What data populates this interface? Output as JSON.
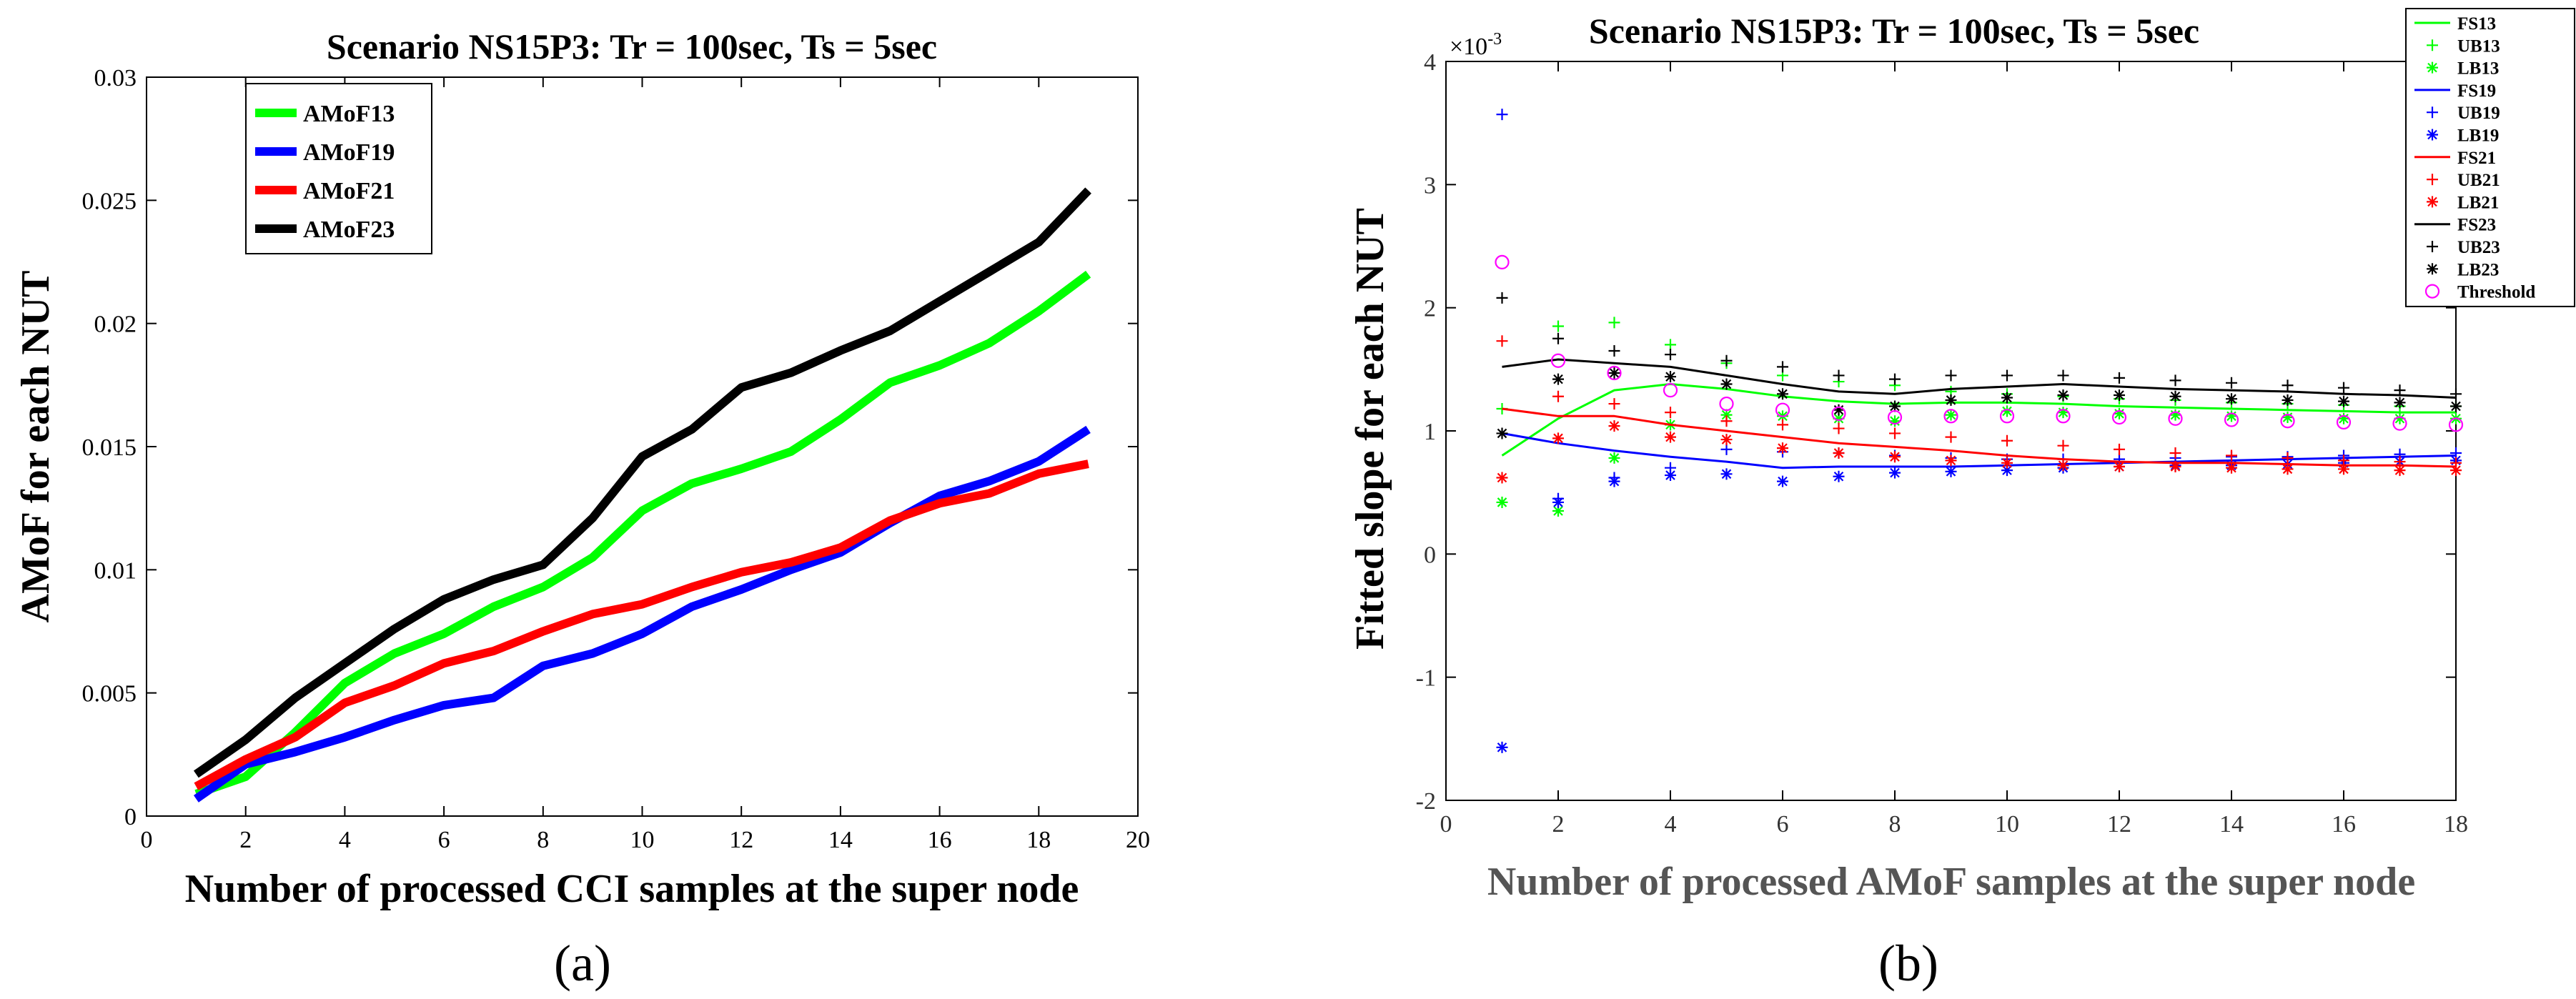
{
  "chart_data": [
    {
      "type": "line",
      "title": "Scenario NS15P3: Tr = 100sec, Ts = 5sec",
      "xlabel": "Number of processed CCI samples at the super node",
      "ylabel": "AMoF for each NUT",
      "xlim": [
        0,
        20
      ],
      "ylim": [
        0,
        0.03
      ],
      "xticks": [
        0,
        2,
        4,
        6,
        8,
        10,
        12,
        14,
        16,
        18,
        20
      ],
      "yticks": [
        0,
        0.005,
        0.01,
        0.015,
        0.02,
        0.025,
        0.03
      ],
      "xtick_labels": [
        "0",
        "2",
        "4",
        "6",
        "8",
        "10",
        "12",
        "14",
        "16",
        "18",
        "20"
      ],
      "ytick_labels": [
        "0",
        "0.005",
        "0.01",
        "0.015",
        "0.02",
        "0.025",
        "0.03"
      ],
      "caption": "(a)",
      "legend_position": "top-left",
      "x": [
        1,
        2,
        3,
        4,
        5,
        6,
        7,
        8,
        9,
        10,
        11,
        12,
        13,
        14,
        15,
        16,
        17,
        18,
        19
      ],
      "series": [
        {
          "name": "AMoF13",
          "color": "#00ff00",
          "values": [
            0.0009,
            0.0016,
            0.0034,
            0.0054,
            0.0066,
            0.0074,
            0.0085,
            0.0093,
            0.0105,
            0.0124,
            0.0135,
            0.0141,
            0.0148,
            0.0161,
            0.0176,
            0.0183,
            0.0192,
            0.0205,
            0.022
          ]
        },
        {
          "name": "AMoF19",
          "color": "#0000ff",
          "values": [
            0.0007,
            0.0021,
            0.0026,
            0.0032,
            0.0039,
            0.0045,
            0.0048,
            0.0061,
            0.0066,
            0.0074,
            0.0085,
            0.0092,
            0.01,
            0.0107,
            0.0119,
            0.013,
            0.0136,
            0.0144,
            0.0157
          ]
        },
        {
          "name": "AMoF21",
          "color": "#ff0000",
          "values": [
            0.0012,
            0.0023,
            0.0032,
            0.0046,
            0.0053,
            0.0062,
            0.0067,
            0.0075,
            0.0082,
            0.0086,
            0.0093,
            0.0099,
            0.0103,
            0.0109,
            0.012,
            0.0127,
            0.0131,
            0.0139,
            0.0143
          ]
        },
        {
          "name": "AMoF23",
          "color": "#000000",
          "values": [
            0.0017,
            0.0031,
            0.0048,
            0.0062,
            0.0076,
            0.0088,
            0.0096,
            0.0102,
            0.0121,
            0.0146,
            0.0157,
            0.0174,
            0.018,
            0.0189,
            0.0197,
            0.0209,
            0.0221,
            0.0233,
            0.0254
          ]
        }
      ]
    },
    {
      "type": "line",
      "title": "Scenario NS15P3: Tr = 100sec, Ts = 5sec",
      "xlabel": "Number of processed AMoF samples at the super node",
      "ylabel": "Fitted slope for each NUT",
      "y_multiplier": "×10-3",
      "y_multiplier_base": "×10",
      "y_multiplier_exp": "-3",
      "xlim": [
        0,
        18
      ],
      "ylim": [
        -2,
        4
      ],
      "xticks": [
        0,
        2,
        4,
        6,
        8,
        10,
        12,
        14,
        16,
        18
      ],
      "yticks": [
        -2,
        -1,
        0,
        1,
        2,
        3,
        4
      ],
      "xtick_labels": [
        "0",
        "2",
        "4",
        "6",
        "8",
        "10",
        "12",
        "14",
        "16",
        "18"
      ],
      "ytick_labels": [
        "-2",
        "-1",
        "0",
        "1",
        "2",
        "3",
        "4"
      ],
      "caption": "(b)",
      "legend_position": "top-right",
      "x": [
        1,
        2,
        3,
        4,
        5,
        6,
        7,
        8,
        9,
        10,
        11,
        12,
        13,
        14,
        15,
        16,
        17,
        18
      ],
      "series": [
        {
          "name": "FS13",
          "color": "#00ff00",
          "marker": "line",
          "values": [
            0.8,
            1.1,
            1.33,
            1.38,
            1.34,
            1.28,
            1.24,
            1.22,
            1.23,
            1.23,
            1.22,
            1.2,
            1.19,
            1.18,
            1.17,
            1.16,
            1.15,
            1.15
          ]
        },
        {
          "name": "UB13",
          "color": "#00ff00",
          "marker": "+",
          "values": [
            1.18,
            1.85,
            1.88,
            1.7,
            1.55,
            1.45,
            1.4,
            1.37,
            1.32,
            1.3,
            1.28,
            1.26,
            1.25,
            1.23,
            1.22,
            1.21,
            1.2,
            1.2
          ]
        },
        {
          "name": "LB13",
          "color": "#00ff00",
          "marker": "*",
          "values": [
            0.42,
            0.35,
            0.78,
            1.05,
            1.13,
            1.12,
            1.1,
            1.08,
            1.13,
            1.16,
            1.15,
            1.14,
            1.13,
            1.12,
            1.11,
            1.1,
            1.1,
            1.1
          ]
        },
        {
          "name": "FS19",
          "color": "#0000ff",
          "marker": "line",
          "values": [
            0.98,
            0.9,
            0.84,
            0.79,
            0.75,
            0.7,
            0.71,
            0.71,
            0.71,
            0.72,
            0.73,
            0.74,
            0.75,
            0.76,
            0.77,
            0.78,
            0.79,
            0.8
          ]
        },
        {
          "name": "UB19",
          "color": "#0000ff",
          "marker": "+",
          "values": [
            3.57,
            0.45,
            0.62,
            0.7,
            0.85,
            0.83,
            0.82,
            0.8,
            0.78,
            0.77,
            0.77,
            0.77,
            0.78,
            0.79,
            0.79,
            0.8,
            0.81,
            0.82
          ]
        },
        {
          "name": "LB19",
          "color": "#0000ff",
          "marker": "*",
          "values": [
            -1.57,
            0.42,
            0.59,
            0.64,
            0.65,
            0.59,
            0.63,
            0.66,
            0.67,
            0.68,
            0.7,
            0.71,
            0.72,
            0.72,
            0.73,
            0.74,
            0.75,
            0.76
          ]
        },
        {
          "name": "FS21",
          "color": "#ff0000",
          "marker": "line",
          "values": [
            1.18,
            1.12,
            1.12,
            1.05,
            1.0,
            0.95,
            0.9,
            0.87,
            0.84,
            0.8,
            0.77,
            0.75,
            0.74,
            0.74,
            0.73,
            0.72,
            0.72,
            0.71
          ]
        },
        {
          "name": "UB21",
          "color": "#ff0000",
          "marker": "+",
          "values": [
            1.73,
            1.28,
            1.22,
            1.15,
            1.08,
            1.05,
            1.02,
            0.98,
            0.95,
            0.92,
            0.88,
            0.85,
            0.82,
            0.8,
            0.78,
            0.76,
            0.75,
            0.74
          ]
        },
        {
          "name": "LB21",
          "color": "#ff0000",
          "marker": "*",
          "values": [
            0.62,
            0.94,
            1.04,
            0.95,
            0.93,
            0.86,
            0.82,
            0.79,
            0.76,
            0.74,
            0.72,
            0.71,
            0.71,
            0.7,
            0.69,
            0.69,
            0.68,
            0.68
          ]
        },
        {
          "name": "FS23",
          "color": "#000000",
          "marker": "line",
          "values": [
            1.52,
            1.58,
            1.55,
            1.52,
            1.45,
            1.38,
            1.32,
            1.3,
            1.34,
            1.36,
            1.38,
            1.36,
            1.34,
            1.33,
            1.32,
            1.3,
            1.29,
            1.27
          ]
        },
        {
          "name": "UB23",
          "color": "#000000",
          "marker": "+",
          "values": [
            2.08,
            1.75,
            1.65,
            1.62,
            1.57,
            1.52,
            1.45,
            1.42,
            1.45,
            1.45,
            1.45,
            1.43,
            1.41,
            1.39,
            1.37,
            1.35,
            1.33,
            1.3
          ]
        },
        {
          "name": "LB23",
          "color": "#000000",
          "marker": "*",
          "values": [
            0.98,
            1.42,
            1.47,
            1.44,
            1.38,
            1.3,
            1.17,
            1.2,
            1.25,
            1.27,
            1.29,
            1.29,
            1.28,
            1.26,
            1.25,
            1.24,
            1.23,
            1.2
          ]
        },
        {
          "name": "Threshold",
          "color": "#ff00ff",
          "marker": "o",
          "values": [
            2.37,
            1.57,
            1.47,
            1.33,
            1.22,
            1.17,
            1.14,
            1.11,
            1.12,
            1.12,
            1.12,
            1.11,
            1.1,
            1.09,
            1.08,
            1.07,
            1.06,
            1.05
          ]
        }
      ]
    }
  ]
}
